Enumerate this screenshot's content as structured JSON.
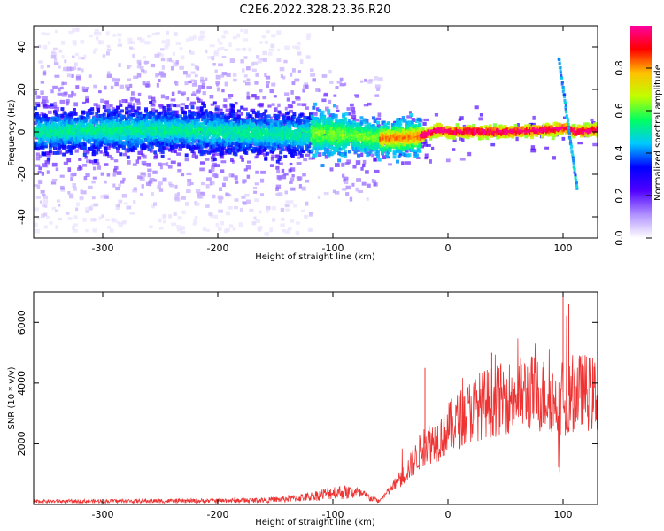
{
  "title": "C2E6.2022.328.23.36.R20",
  "chart_data": [
    {
      "type": "heatmap",
      "xlabel": "Height of straight line (km)",
      "ylabel": "Frequency (Hz)",
      "xlim": [
        -360,
        130
      ],
      "ylim": [
        -50,
        50
      ],
      "x_ticks": [
        -300,
        -200,
        -100,
        0,
        100
      ],
      "y_ticks": [
        -40,
        -20,
        0,
        20,
        40
      ],
      "x_tick_labels": [
        "-300",
        "-200",
        "-100",
        "0",
        "100"
      ],
      "y_tick_labels": [
        "-40",
        "-20",
        "0",
        "20",
        "40"
      ],
      "colorbar": {
        "label": "Normalized spectral amplitude",
        "range": [
          0,
          1
        ],
        "ticks": [
          0.0,
          0.2,
          0.4,
          0.6,
          0.8
        ],
        "tick_labels": [
          "0.0",
          "0.2",
          "0.4",
          "0.6",
          "0.8"
        ],
        "colormap": [
          "#ffffff",
          "#b090ff",
          "#5000ff",
          "#0000ff",
          "#00c8ff",
          "#00ff60",
          "#c0ff00",
          "#ffc000",
          "#ff0000",
          "#ff00a0"
        ]
      },
      "ridge": {
        "x": [
          -360,
          -250,
          -150,
          -100,
          -60,
          -40,
          -25,
          -10,
          0,
          50,
          90,
          100,
          110,
          130
        ],
        "frequency": [
          0,
          1,
          -1,
          -1,
          -3,
          -3,
          -2,
          1,
          0,
          0,
          1,
          2,
          0,
          1
        ]
      },
      "grid": false
    },
    {
      "type": "line",
      "xlabel": "Height of straight line (km)",
      "ylabel": "SNR (10 * v/v)",
      "xlim": [
        -360,
        130
      ],
      "ylim": [
        0,
        7000
      ],
      "x_ticks": [
        -300,
        -200,
        -100,
        0,
        100
      ],
      "y_ticks": [
        2000,
        4000,
        6000
      ],
      "x_tick_labels": [
        "-300",
        "-200",
        "-100",
        "0",
        "100"
      ],
      "y_tick_labels": [
        "2000",
        "4000",
        "6000"
      ],
      "color": "#ee3333",
      "envelope": {
        "x": [
          -360,
          -200,
          -150,
          -120,
          -100,
          -80,
          -60,
          -50,
          -40,
          -30,
          -20,
          -10,
          0,
          10,
          20,
          30,
          40,
          50,
          60,
          70,
          80,
          90,
          95,
          100,
          105,
          110,
          120,
          130
        ],
        "y": [
          100,
          120,
          150,
          250,
          400,
          400,
          100,
          500,
          900,
          1400,
          2000,
          2100,
          2500,
          2800,
          3100,
          3300,
          3400,
          3500,
          3600,
          3700,
          3600,
          3600,
          3200,
          3700,
          3600,
          3700,
          3700,
          3600
        ]
      },
      "peaks": [
        {
          "x": -20,
          "y": 4500
        },
        {
          "x": 38,
          "y": 5000
        },
        {
          "x": 100,
          "y": 7000
        },
        {
          "x": 105,
          "y": 6600
        }
      ],
      "grid": false
    }
  ]
}
